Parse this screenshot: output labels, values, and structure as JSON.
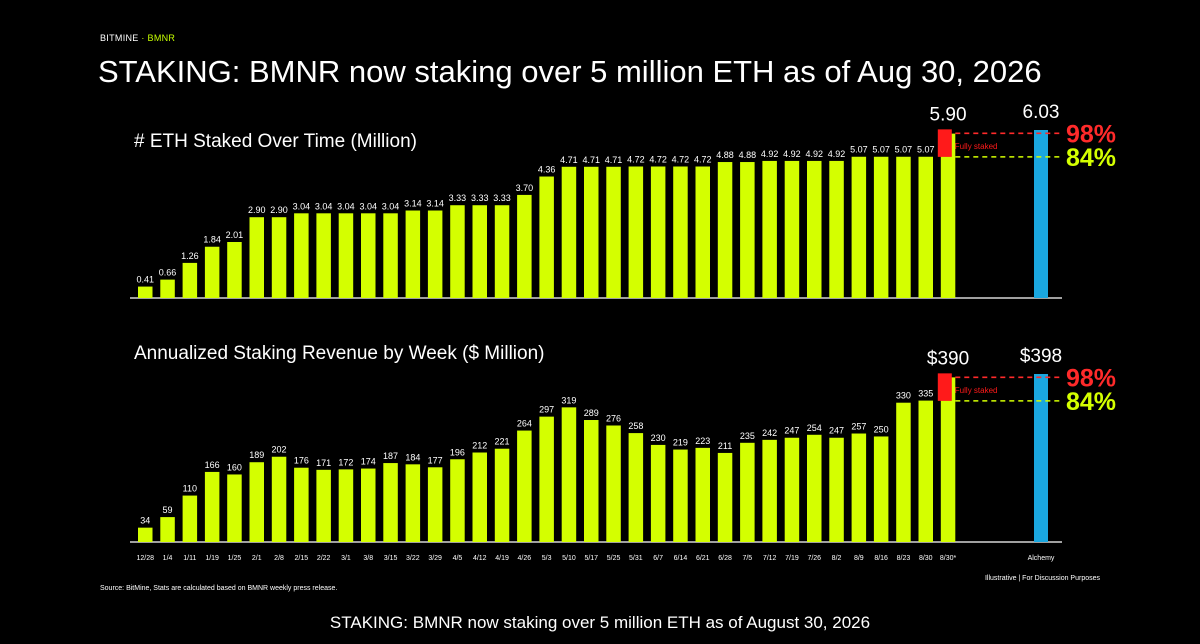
{
  "brand": {
    "left": "BITMINE",
    "separator": " · ",
    "right": "BMNR"
  },
  "headline": "STAKING: BMNR now staking over 5 million ETH as of Aug 30, 2026",
  "caption": "STAKING: BMNR now staking over 5 million ETH as of August 30, 2026",
  "source_note": "Source: BitMine, Stats are calculated based on BMNR weekly press release.",
  "footer_note": "Illustrative  |  For Discussion Purposes",
  "colors": {
    "bar": "#d4ff00",
    "alchemy": "#1aa7e0",
    "fully_staked": "#ff1a1a",
    "pct98": "#ff2a2a",
    "pct84": "#d4ff00",
    "background": "#000000"
  },
  "chart_data": [
    {
      "type": "bar",
      "title": "# ETH Staked Over Time (Million)",
      "categories": [
        "12/28",
        "1/4",
        "1/11",
        "1/19",
        "1/25",
        "2/1",
        "2/8",
        "2/15",
        "2/22",
        "3/1",
        "3/8",
        "3/15",
        "3/22",
        "3/29",
        "4/5",
        "4/12",
        "4/19",
        "4/26",
        "5/3",
        "5/10",
        "5/17",
        "5/25",
        "5/31",
        "6/7",
        "6/14",
        "6/21",
        "6/28",
        "7/5",
        "7/12",
        "7/19",
        "7/26",
        "8/2",
        "8/9",
        "8/16",
        "8/23",
        "8/30",
        "8/30*"
      ],
      "values": [
        0.41,
        0.66,
        1.26,
        1.84,
        2.01,
        2.9,
        2.9,
        3.04,
        3.04,
        3.04,
        3.04,
        3.04,
        3.14,
        3.14,
        3.33,
        3.33,
        3.33,
        3.7,
        4.36,
        4.71,
        4.71,
        4.71,
        4.72,
        4.72,
        4.72,
        4.72,
        4.88,
        4.88,
        4.92,
        4.92,
        4.92,
        4.92,
        5.07,
        5.07,
        5.07,
        5.07,
        5.9
      ],
      "labels": [
        "0.41",
        "0.66",
        "1.26",
        "1.84",
        "2.01",
        "2.90",
        "2.90",
        "3.04",
        "3.04",
        "3.04",
        "3.04",
        "3.04",
        "3.14",
        "3.14",
        "3.33",
        "3.33",
        "3.33",
        "3.70",
        "4.36",
        "4.71",
        "4.71",
        "4.71",
        "4.72",
        "4.72",
        "4.72",
        "4.72",
        "4.88",
        "4.88",
        "4.92",
        "4.92",
        "4.92",
        "4.92",
        "5.07",
        "5.07",
        "5.07",
        "5.07",
        "5.90"
      ],
      "comparison": {
        "category": "Alchemy",
        "value": 6.03,
        "label": "6.03"
      },
      "fully_staked_label": "Fully staked",
      "reference_lines": [
        {
          "label": "98%",
          "fraction": 0.98
        },
        {
          "label": "84%",
          "fraction": 0.84
        }
      ],
      "ylim": [
        0,
        6.03
      ]
    },
    {
      "type": "bar",
      "title": "Annualized Staking Revenue by Week ($ Million)",
      "categories": [
        "12/28",
        "1/4",
        "1/11",
        "1/19",
        "1/25",
        "2/1",
        "2/8",
        "2/15",
        "2/22",
        "3/1",
        "3/8",
        "3/15",
        "3/22",
        "3/29",
        "4/5",
        "4/12",
        "4/19",
        "4/26",
        "5/3",
        "5/10",
        "5/17",
        "5/25",
        "5/31",
        "6/7",
        "6/14",
        "6/21",
        "6/28",
        "7/5",
        "7/12",
        "7/19",
        "7/26",
        "8/2",
        "8/9",
        "8/16",
        "8/23",
        "8/30",
        "8/30*"
      ],
      "values": [
        34,
        59,
        110,
        166,
        160,
        189,
        202,
        176,
        171,
        172,
        174,
        187,
        184,
        177,
        196,
        212,
        221,
        264,
        297,
        319,
        289,
        276,
        258,
        230,
        219,
        223,
        211,
        235,
        242,
        247,
        254,
        247,
        257,
        250,
        330,
        335,
        390
      ],
      "labels": [
        "34",
        "59",
        "110",
        "166",
        "160",
        "189",
        "202",
        "176",
        "171",
        "172",
        "174",
        "187",
        "184",
        "177",
        "196",
        "212",
        "221",
        "264",
        "297",
        "319",
        "289",
        "276",
        "258",
        "230",
        "219",
        "223",
        "211",
        "235",
        "242",
        "247",
        "254",
        "247",
        "257",
        "250",
        "330",
        "335",
        "$390"
      ],
      "comparison": {
        "category": "Alchemy",
        "value": 398,
        "label": "$398"
      },
      "fully_staked_label": "Fully staked",
      "reference_lines": [
        {
          "label": "98%",
          "fraction": 0.98
        },
        {
          "label": "84%",
          "fraction": 0.84
        }
      ],
      "ylim": [
        0,
        398
      ]
    }
  ]
}
